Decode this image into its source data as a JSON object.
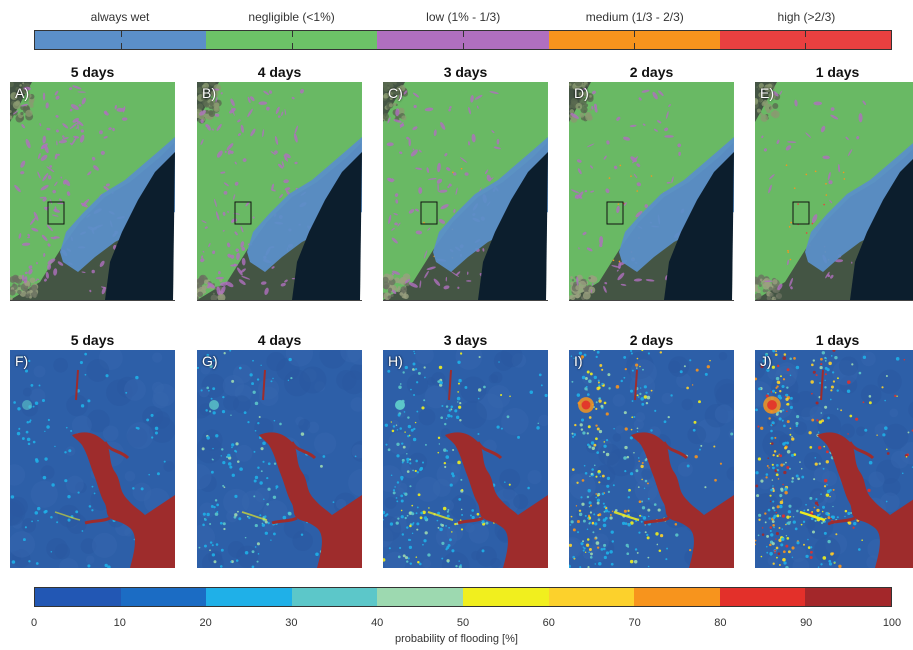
{
  "top_legend": {
    "categories": [
      {
        "label": "always wet",
        "color": "#5b8fc8"
      },
      {
        "label": "negligible (<1%)",
        "color": "#6cc267"
      },
      {
        "label": "low (1% - 1/3)",
        "color": "#b06fbf"
      },
      {
        "label": "medium (1/3 - 2/3)",
        "color": "#f7941d"
      },
      {
        "label": "high (>2/3)",
        "color": "#e94040"
      }
    ]
  },
  "top_row": {
    "panels": [
      {
        "label": "A)",
        "title": "5 days",
        "low_density": 0.55,
        "medium_density": 0.0,
        "high_density": 0.0
      },
      {
        "label": "B)",
        "title": "4 days",
        "low_density": 0.5,
        "medium_density": 0.0,
        "high_density": 0.0
      },
      {
        "label": "C)",
        "title": "3 days",
        "low_density": 0.42,
        "medium_density": 0.02,
        "high_density": 0.0
      },
      {
        "label": "D)",
        "title": "2 days",
        "low_density": 0.3,
        "medium_density": 0.03,
        "high_density": 0.01
      },
      {
        "label": "E)",
        "title": "1 days",
        "low_density": 0.15,
        "medium_density": 0.05,
        "high_density": 0.03
      }
    ]
  },
  "bottom_row": {
    "panels": [
      {
        "label": "F)",
        "title": "5 days",
        "intensity": 0.12
      },
      {
        "label": "G)",
        "title": "4 days",
        "intensity": 0.3
      },
      {
        "label": "H)",
        "title": "3 days",
        "intensity": 0.5
      },
      {
        "label": "I)",
        "title": "2 days",
        "intensity": 0.72
      },
      {
        "label": "J)",
        "title": "1 days",
        "intensity": 0.95
      }
    ]
  },
  "colorbar": {
    "colors": [
      "#2257b4",
      "#1b6cc4",
      "#1fb0e8",
      "#5cc7c9",
      "#9dd9b0",
      "#f1ef1e",
      "#fcd12c",
      "#f7941d",
      "#e3302a",
      "#a3272a"
    ],
    "ticks": [
      "0",
      "10",
      "20",
      "30",
      "40",
      "50",
      "60",
      "70",
      "80",
      "90",
      "100"
    ],
    "label": "probability of flooding [%]"
  },
  "colors": {
    "ocean": "#0c1e2d",
    "satellite_base": "#445544",
    "estuary": "#5b8fc8",
    "land_green": "#6cc267",
    "bg_blue": "#2d5fa8",
    "river_red": "#9e2c2c"
  }
}
